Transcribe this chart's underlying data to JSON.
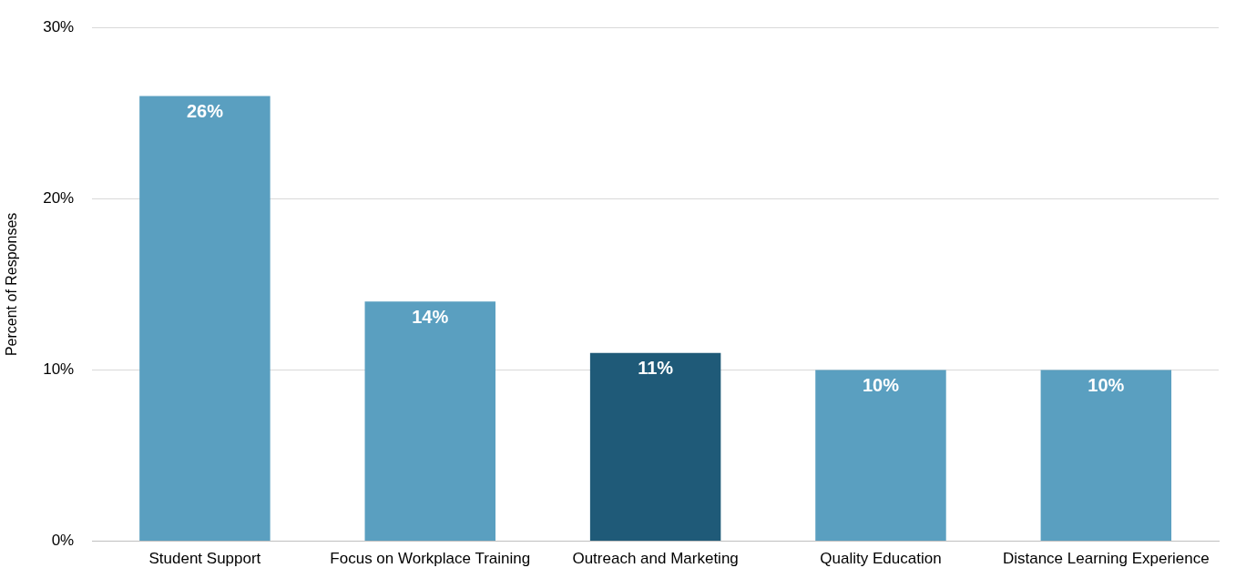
{
  "chart_data": {
    "type": "bar",
    "ylabel": "Percent of Responses",
    "categories": [
      "Student Support",
      "Focus on Workplace Training",
      "Outreach and Marketing",
      "Quality Education",
      "Distance Learning Experience"
    ],
    "values": [
      26,
      14,
      11,
      10,
      10
    ],
    "colors": [
      "#5a9fc0",
      "#5a9fc0",
      "#1f5a78",
      "#5a9fc0",
      "#5a9fc0"
    ],
    "value_labels": [
      "26%",
      "14%",
      "11%",
      "10%",
      "10%"
    ],
    "ylim": [
      0,
      30
    ],
    "yticks": [
      {
        "value": 0,
        "label": "0%"
      },
      {
        "value": 10,
        "label": "10%"
      },
      {
        "value": 20,
        "label": "20%"
      },
      {
        "value": 30,
        "label": "30%"
      }
    ],
    "grid": "y",
    "legend": false
  }
}
